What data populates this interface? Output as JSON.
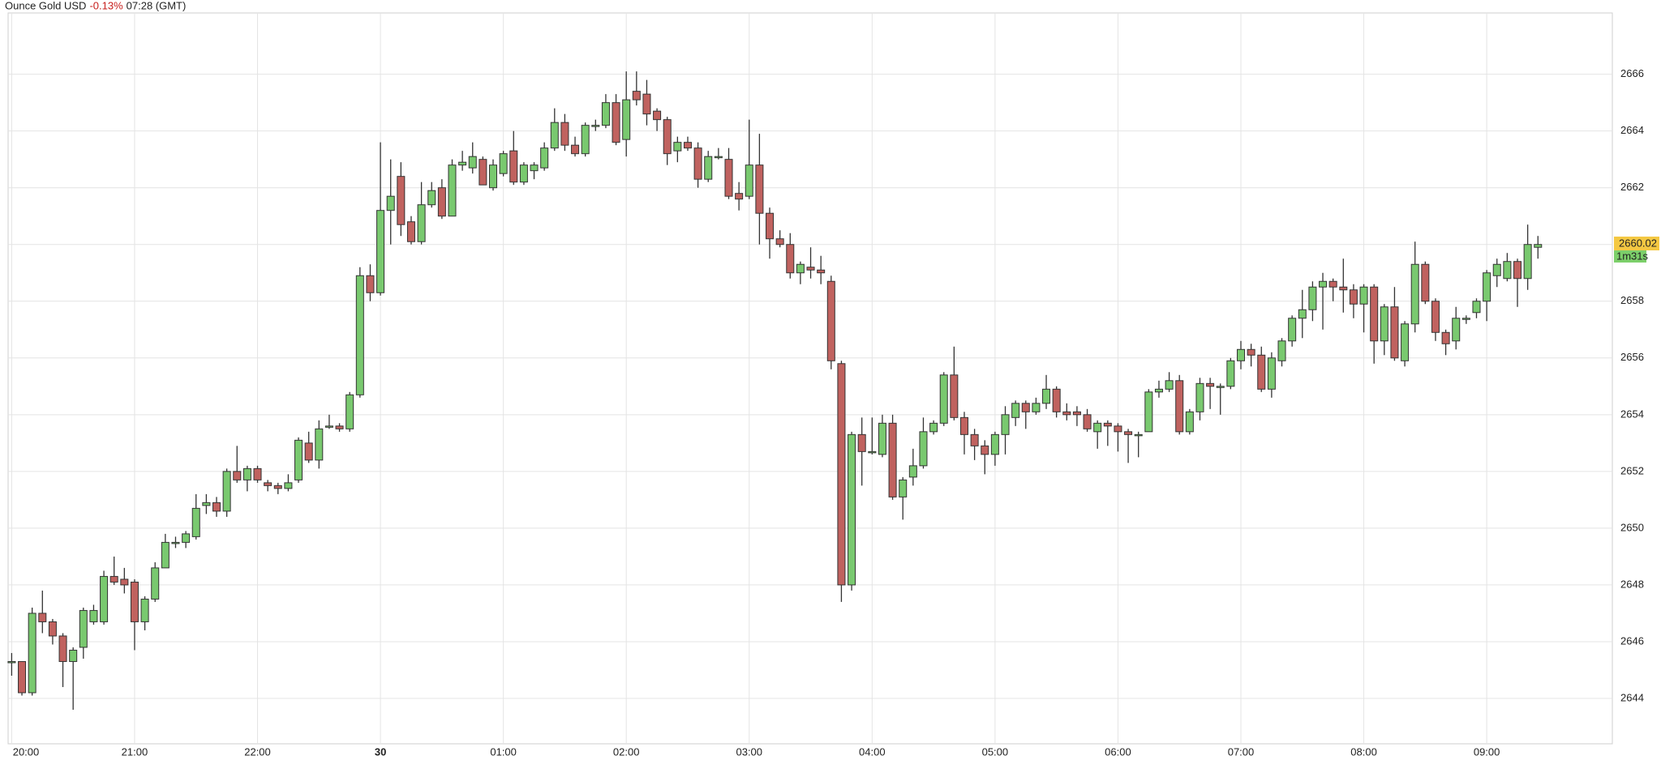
{
  "chart_data": {
    "type": "candlestick",
    "title": "Ounce Gold USD",
    "change": "-0.13%",
    "time": "07:28 (GMT)",
    "categories": [
      "20:00",
      null,
      null,
      null,
      null,
      null,
      null,
      null,
      null,
      null,
      null,
      null,
      "21:00",
      null,
      null,
      null,
      null,
      null,
      null,
      null,
      null,
      null,
      null,
      null,
      "22:00",
      null,
      null,
      null,
      null,
      null,
      null,
      null,
      null,
      null,
      null,
      null,
      "30",
      null,
      null,
      null,
      null,
      null,
      null,
      null,
      null,
      null,
      null,
      null,
      "01:00",
      null,
      null,
      null,
      null,
      null,
      null,
      null,
      null,
      null,
      null,
      null,
      "02:00",
      null,
      null,
      null,
      null,
      null,
      null,
      null,
      null,
      null,
      null,
      null,
      "03:00",
      null,
      null,
      null,
      null,
      null,
      null,
      null,
      null,
      null,
      null,
      null,
      "04:00",
      null,
      null,
      null,
      null,
      null,
      null,
      null,
      null,
      null,
      null,
      null,
      "05:00",
      null,
      null,
      null,
      null,
      null,
      null,
      null,
      null,
      null,
      null,
      null,
      "06:00",
      null,
      null,
      null,
      null,
      null,
      null,
      null,
      null,
      null,
      null,
      null,
      "07:00",
      null,
      null,
      null,
      null,
      null,
      null,
      null,
      null,
      null,
      null,
      null,
      "08:00",
      null,
      null,
      null,
      null,
      null,
      null,
      null,
      null,
      null,
      null,
      null,
      "09:00",
      null,
      null,
      null,
      null,
      null
    ],
    "open": [
      2645.3,
      2645.3,
      2644.2,
      2647.0,
      2646.7,
      2646.2,
      2645.3,
      2645.8,
      2646.7,
      2646.7,
      2648.3,
      2648.2,
      2648.1,
      2646.7,
      2647.5,
      2648.6,
      2649.5,
      2649.5,
      2649.7,
      2650.8,
      2650.9,
      2650.6,
      2652.0,
      2651.7,
      2652.1,
      2651.6,
      2651.5,
      2651.4,
      2651.7,
      2653.0,
      2652.4,
      2653.6,
      2653.6,
      2653.5,
      2654.7,
      2658.9,
      2658.3,
      2661.2,
      2662.4,
      2660.8,
      2660.1,
      2661.4,
      2662.0,
      2661.0,
      2662.8,
      2662.7,
      2663.0,
      2662.0,
      2662.5,
      2663.3,
      2662.2,
      2662.6,
      2662.7,
      2663.4,
      2664.3,
      2663.5,
      2663.2,
      2664.2,
      2664.2,
      2665.0,
      2663.7,
      2665.4,
      2665.3,
      2664.7,
      2664.4,
      2663.3,
      2663.6,
      2663.4,
      2662.3,
      2663.1,
      2663.0,
      2661.8,
      2661.7,
      2662.8,
      2661.1,
      2660.2,
      2660.0,
      2659.0,
      2659.2,
      2659.1,
      2658.7,
      2655.8,
      2648.0,
      2653.3,
      2652.7,
      2652.6,
      2653.7,
      2651.1,
      2651.8,
      2652.2,
      2653.4,
      2653.7,
      2655.4,
      2653.9,
      2653.3,
      2652.9,
      2652.6,
      2653.3,
      2653.9,
      2654.4,
      2654.1,
      2654.4,
      2654.9,
      2654.1,
      2654.1,
      2654.0,
      2653.4,
      2653.7,
      2653.6,
      2653.4,
      2653.3,
      2653.4,
      2654.8,
      2654.9,
      2655.2,
      2653.4,
      2654.1,
      2655.1,
      2655.0,
      2655.0,
      2655.9,
      2656.3,
      2656.1,
      2654.9,
      2655.9,
      2656.6,
      2657.4,
      2657.7,
      2658.5,
      2658.7,
      2658.5,
      2658.4,
      2657.9,
      2658.5,
      2656.6,
      2657.8,
      2655.9,
      2657.2,
      2659.3,
      2658.0,
      2656.9,
      2656.6,
      2657.4,
      2657.6,
      2658.0,
      2658.9,
      2658.8,
      2659.4,
      2658.8,
      2659.9
    ],
    "high": [
      2645.6,
      2645.3,
      2647.2,
      2647.8,
      2646.8,
      2646.3,
      2645.8,
      2647.2,
      2647.3,
      2648.5,
      2649.0,
      2648.6,
      2648.2,
      2647.6,
      2648.8,
      2649.8,
      2649.7,
      2649.9,
      2651.2,
      2651.2,
      2651.1,
      2652.1,
      2652.9,
      2652.2,
      2652.2,
      2651.7,
      2651.6,
      2651.9,
      2653.2,
      2653.4,
      2653.8,
      2654.0,
      2653.7,
      2654.8,
      2659.2,
      2659.3,
      2663.6,
      2663.0,
      2662.9,
      2661.0,
      2662.2,
      2662.2,
      2662.3,
      2663.0,
      2663.3,
      2663.6,
      2663.1,
      2663.0,
      2663.3,
      2664.0,
      2662.9,
      2662.9,
      2663.6,
      2664.8,
      2664.6,
      2663.8,
      2664.3,
      2664.4,
      2665.3,
      2665.3,
      2666.1,
      2666.1,
      2665.8,
      2664.8,
      2664.5,
      2663.8,
      2663.8,
      2663.6,
      2663.3,
      2663.4,
      2663.4,
      2662.2,
      2664.4,
      2663.9,
      2661.3,
      2660.5,
      2660.4,
      2659.4,
      2659.9,
      2659.6,
      2658.9,
      2655.9,
      2653.4,
      2653.9,
      2653.9,
      2654.0,
      2654.0,
      2651.8,
      2652.8,
      2653.9,
      2653.8,
      2655.5,
      2656.4,
      2654.1,
      2653.5,
      2653.1,
      2653.4,
      2654.3,
      2654.5,
      2654.5,
      2654.6,
      2655.4,
      2655.0,
      2654.4,
      2654.3,
      2654.2,
      2653.8,
      2653.8,
      2653.7,
      2653.5,
      2653.4,
      2654.9,
      2655.2,
      2655.5,
      2655.4,
      2654.2,
      2655.3,
      2655.3,
      2655.1,
      2656.0,
      2656.6,
      2656.5,
      2656.4,
      2656.2,
      2656.7,
      2657.5,
      2658.4,
      2658.7,
      2659.0,
      2658.8,
      2659.5,
      2658.6,
      2658.6,
      2658.6,
      2657.9,
      2658.5,
      2657.3,
      2660.1,
      2659.4,
      2658.1,
      2657.0,
      2657.8,
      2657.5,
      2658.1,
      2659.1,
      2659.5,
      2659.7,
      2659.5,
      2660.7,
      2660.3
    ],
    "low": [
      2644.8,
      2644.1,
      2644.1,
      2646.3,
      2645.9,
      2644.4,
      2643.6,
      2645.4,
      2646.6,
      2646.6,
      2648.0,
      2647.7,
      2645.7,
      2646.4,
      2647.4,
      2648.6,
      2649.3,
      2649.3,
      2649.6,
      2650.5,
      2650.4,
      2650.4,
      2651.6,
      2651.3,
      2651.6,
      2651.3,
      2651.2,
      2651.3,
      2651.6,
      2652.3,
      2652.1,
      2653.5,
      2653.4,
      2653.4,
      2654.6,
      2658.0,
      2658.2,
      2660.0,
      2660.3,
      2660.0,
      2660.0,
      2661.3,
      2660.9,
      2661.0,
      2662.6,
      2662.5,
      2662.1,
      2661.9,
      2662.4,
      2662.1,
      2662.1,
      2662.3,
      2662.6,
      2663.3,
      2663.3,
      2663.1,
      2663.1,
      2664.0,
      2664.1,
      2663.5,
      2663.1,
      2664.9,
      2664.2,
      2664.0,
      2662.8,
      2662.9,
      2663.3,
      2662.0,
      2662.2,
      2663.0,
      2661.6,
      2661.2,
      2661.6,
      2660.0,
      2659.5,
      2659.9,
      2658.8,
      2658.6,
      2658.8,
      2658.6,
      2655.6,
      2647.4,
      2647.8,
      2651.5,
      2652.6,
      2652.5,
      2651.0,
      2650.3,
      2651.5,
      2652.1,
      2653.3,
      2653.6,
      2653.8,
      2652.6,
      2652.4,
      2651.9,
      2652.2,
      2652.6,
      2653.6,
      2653.5,
      2654.0,
      2654.2,
      2653.9,
      2653.8,
      2653.6,
      2653.4,
      2652.8,
      2652.9,
      2652.7,
      2652.3,
      2652.5,
      2653.4,
      2654.6,
      2654.8,
      2653.3,
      2653.3,
      2653.8,
      2654.2,
      2654.0,
      2654.9,
      2655.6,
      2655.7,
      2654.8,
      2654.6,
      2655.7,
      2656.4,
      2656.7,
      2657.3,
      2657.0,
      2658.0,
      2657.6,
      2657.4,
      2656.9,
      2655.8,
      2656.1,
      2655.9,
      2655.7,
      2656.9,
      2657.9,
      2656.6,
      2656.1,
      2656.3,
      2657.2,
      2657.4,
      2657.3,
      2658.5,
      2658.7,
      2657.8,
      2658.4,
      2659.5
    ],
    "close": [
      2645.3,
      2644.2,
      2647.0,
      2646.7,
      2646.2,
      2645.3,
      2645.7,
      2647.1,
      2647.1,
      2648.3,
      2648.1,
      2648.0,
      2646.7,
      2647.5,
      2648.6,
      2649.5,
      2649.5,
      2649.8,
      2650.7,
      2650.9,
      2650.6,
      2652.0,
      2651.7,
      2652.1,
      2651.7,
      2651.5,
      2651.4,
      2651.6,
      2653.1,
      2652.4,
      2653.5,
      2653.6,
      2653.5,
      2654.7,
      2658.9,
      2658.3,
      2661.2,
      2661.7,
      2660.7,
      2660.1,
      2661.4,
      2661.9,
      2661.0,
      2662.8,
      2662.9,
      2663.1,
      2662.1,
      2662.8,
      2663.2,
      2662.2,
      2662.8,
      2662.8,
      2663.4,
      2664.3,
      2663.5,
      2663.2,
      2664.2,
      2664.2,
      2665.0,
      2663.6,
      2665.1,
      2665.1,
      2664.6,
      2664.4,
      2663.2,
      2663.6,
      2663.4,
      2662.3,
      2663.1,
      2663.1,
      2661.7,
      2661.6,
      2662.8,
      2661.1,
      2660.2,
      2660.0,
      2659.0,
      2659.3,
      2659.1,
      2659.0,
      2655.9,
      2648.0,
      2653.3,
      2652.7,
      2652.7,
      2653.7,
      2651.1,
      2651.7,
      2652.2,
      2653.4,
      2653.7,
      2655.4,
      2653.9,
      2653.3,
      2652.9,
      2652.6,
      2653.3,
      2654.0,
      2654.4,
      2654.1,
      2654.4,
      2654.9,
      2654.1,
      2654.0,
      2654.0,
      2653.5,
      2653.7,
      2653.6,
      2653.4,
      2653.3,
      2653.3,
      2654.8,
      2654.9,
      2655.2,
      2653.4,
      2654.1,
      2655.1,
      2655.0,
      2655.0,
      2655.9,
      2656.3,
      2656.1,
      2654.9,
      2656.0,
      2656.6,
      2657.4,
      2657.7,
      2658.5,
      2658.7,
      2658.5,
      2658.4,
      2657.9,
      2658.5,
      2656.6,
      2657.8,
      2656.0,
      2657.2,
      2659.3,
      2658.0,
      2656.9,
      2656.5,
      2657.4,
      2657.4,
      2658.0,
      2659.0,
      2659.3,
      2659.4,
      2658.8,
      2660.0,
      2660.0
    ],
    "up_color": "#79c96f",
    "down_color": "#c0625f",
    "change_color": "#c8201e",
    "ylim": [
      2642.4,
      2668.16
    ],
    "yticks": [
      2644,
      2646,
      2648,
      2650,
      2652,
      2654,
      2656,
      2658,
      2660,
      2662,
      2664,
      2666
    ],
    "grid": true,
    "last_price": 2660.02,
    "countdown": "1m31s"
  }
}
